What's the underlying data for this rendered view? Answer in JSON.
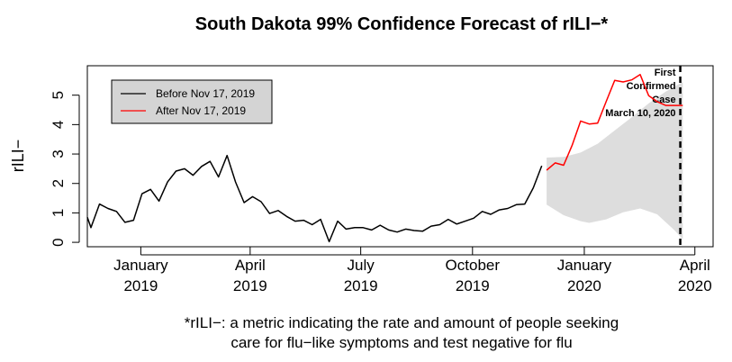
{
  "chart_data": {
    "type": "line",
    "title": "South Dakota 99% Confidence Forecast of rILI−*",
    "ylabel": "rILI−",
    "xlabel": "",
    "caption_lines": [
      "*rILI−: a metric indicating the rate and amount of people seeking",
      "care for flu−like symptoms and test negative for flu"
    ],
    "ylim": [
      -0.15,
      6.0
    ],
    "xlim": [
      "2018-11-18",
      "2020-04-16"
    ],
    "yticks": [
      0,
      1,
      2,
      3,
      4,
      5
    ],
    "xticks": [
      {
        "date": "2019-01-01",
        "line1": "January",
        "line2": "2019"
      },
      {
        "date": "2019-04-01",
        "line1": "April",
        "line2": "2019"
      },
      {
        "date": "2019-07-01",
        "line1": "July",
        "line2": "2019"
      },
      {
        "date": "2019-10-01",
        "line1": "October",
        "line2": "2019"
      },
      {
        "date": "2020-01-01",
        "line1": "January",
        "line2": "2020"
      },
      {
        "date": "2020-04-01",
        "line1": "April",
        "line2": "2020"
      }
    ],
    "legend": {
      "position": "top-left",
      "entries": [
        {
          "label": "Before Nov 17, 2019",
          "color": "#000000"
        },
        {
          "label": "After Nov 17, 2019",
          "color": "#ff0000"
        }
      ]
    },
    "series": [
      {
        "name": "Before Nov 17, 2019",
        "color": "#000000",
        "points": [
          [
            "2018-11-18",
            0.85
          ],
          [
            "2018-11-21",
            0.5
          ],
          [
            "2018-11-28",
            1.3
          ],
          [
            "2018-12-05",
            1.15
          ],
          [
            "2018-12-12",
            1.05
          ],
          [
            "2018-12-19",
            0.68
          ],
          [
            "2018-12-26",
            0.75
          ],
          [
            "2019-01-02",
            1.65
          ],
          [
            "2019-01-09",
            1.8
          ],
          [
            "2019-01-16",
            1.4
          ],
          [
            "2019-01-23",
            2.05
          ],
          [
            "2019-01-30",
            2.42
          ],
          [
            "2019-02-06",
            2.5
          ],
          [
            "2019-02-13",
            2.28
          ],
          [
            "2019-02-20",
            2.58
          ],
          [
            "2019-02-27",
            2.75
          ],
          [
            "2019-03-06",
            2.22
          ],
          [
            "2019-03-13",
            2.95
          ],
          [
            "2019-03-20",
            2.05
          ],
          [
            "2019-03-27",
            1.35
          ],
          [
            "2019-04-03",
            1.55
          ],
          [
            "2019-04-10",
            1.38
          ],
          [
            "2019-04-17",
            0.98
          ],
          [
            "2019-04-24",
            1.08
          ],
          [
            "2019-05-01",
            0.88
          ],
          [
            "2019-05-08",
            0.72
          ],
          [
            "2019-05-15",
            0.75
          ],
          [
            "2019-05-22",
            0.6
          ],
          [
            "2019-05-29",
            0.78
          ],
          [
            "2019-06-05",
            0.02
          ],
          [
            "2019-06-12",
            0.72
          ],
          [
            "2019-06-19",
            0.45
          ],
          [
            "2019-06-26",
            0.5
          ],
          [
            "2019-07-03",
            0.5
          ],
          [
            "2019-07-10",
            0.42
          ],
          [
            "2019-07-17",
            0.58
          ],
          [
            "2019-07-24",
            0.42
          ],
          [
            "2019-07-31",
            0.35
          ],
          [
            "2019-08-07",
            0.45
          ],
          [
            "2019-08-14",
            0.4
          ],
          [
            "2019-08-21",
            0.38
          ],
          [
            "2019-08-28",
            0.55
          ],
          [
            "2019-09-04",
            0.6
          ],
          [
            "2019-09-11",
            0.78
          ],
          [
            "2019-09-18",
            0.62
          ],
          [
            "2019-09-25",
            0.72
          ],
          [
            "2019-10-02",
            0.82
          ],
          [
            "2019-10-09",
            1.05
          ],
          [
            "2019-10-16",
            0.95
          ],
          [
            "2019-10-23",
            1.1
          ],
          [
            "2019-10-30",
            1.15
          ],
          [
            "2019-11-06",
            1.28
          ],
          [
            "2019-11-13",
            1.3
          ],
          [
            "2019-11-20",
            1.85
          ],
          [
            "2019-11-27",
            2.6
          ]
        ]
      },
      {
        "name": "After Nov 17, 2019",
        "color": "#ff0000",
        "points": [
          [
            "2019-12-01",
            2.45
          ],
          [
            "2019-12-08",
            2.7
          ],
          [
            "2019-12-15",
            2.62
          ],
          [
            "2019-12-22",
            3.3
          ],
          [
            "2019-12-29",
            4.12
          ],
          [
            "2020-01-05",
            4.02
          ],
          [
            "2020-01-12",
            4.05
          ],
          [
            "2020-01-19",
            4.78
          ],
          [
            "2020-01-26",
            5.5
          ],
          [
            "2020-02-02",
            5.45
          ],
          [
            "2020-02-09",
            5.52
          ],
          [
            "2020-02-16",
            5.7
          ],
          [
            "2020-02-23",
            4.98
          ],
          [
            "2020-03-01",
            4.78
          ],
          [
            "2020-03-08",
            4.65
          ],
          [
            "2020-03-15",
            4.65
          ],
          [
            "2020-03-22",
            4.65
          ]
        ]
      }
    ],
    "confidence_band": {
      "color": "#dddddd",
      "upper": [
        [
          "2019-12-01",
          2.88
        ],
        [
          "2019-12-15",
          2.9
        ],
        [
          "2019-12-29",
          3.05
        ],
        [
          "2020-01-12",
          3.35
        ],
        [
          "2020-01-26",
          3.8
        ],
        [
          "2020-02-09",
          4.25
        ],
        [
          "2020-02-23",
          4.72
        ],
        [
          "2020-03-08",
          5.12
        ],
        [
          "2020-03-22",
          5.45
        ]
      ],
      "lower": [
        [
          "2019-12-01",
          1.28
        ],
        [
          "2019-12-15",
          0.92
        ],
        [
          "2019-12-29",
          0.72
        ],
        [
          "2020-01-05",
          0.66
        ],
        [
          "2020-01-19",
          0.78
        ],
        [
          "2020-02-02",
          1.02
        ],
        [
          "2020-02-16",
          1.15
        ],
        [
          "2020-03-01",
          0.95
        ],
        [
          "2020-03-15",
          0.42
        ],
        [
          "2020-03-22",
          0.1
        ]
      ]
    },
    "event_line": {
      "date": "2020-03-20",
      "labels": [
        "First",
        "Confirmed",
        "Case",
        "March 10, 2020"
      ],
      "color": "#000000"
    }
  }
}
